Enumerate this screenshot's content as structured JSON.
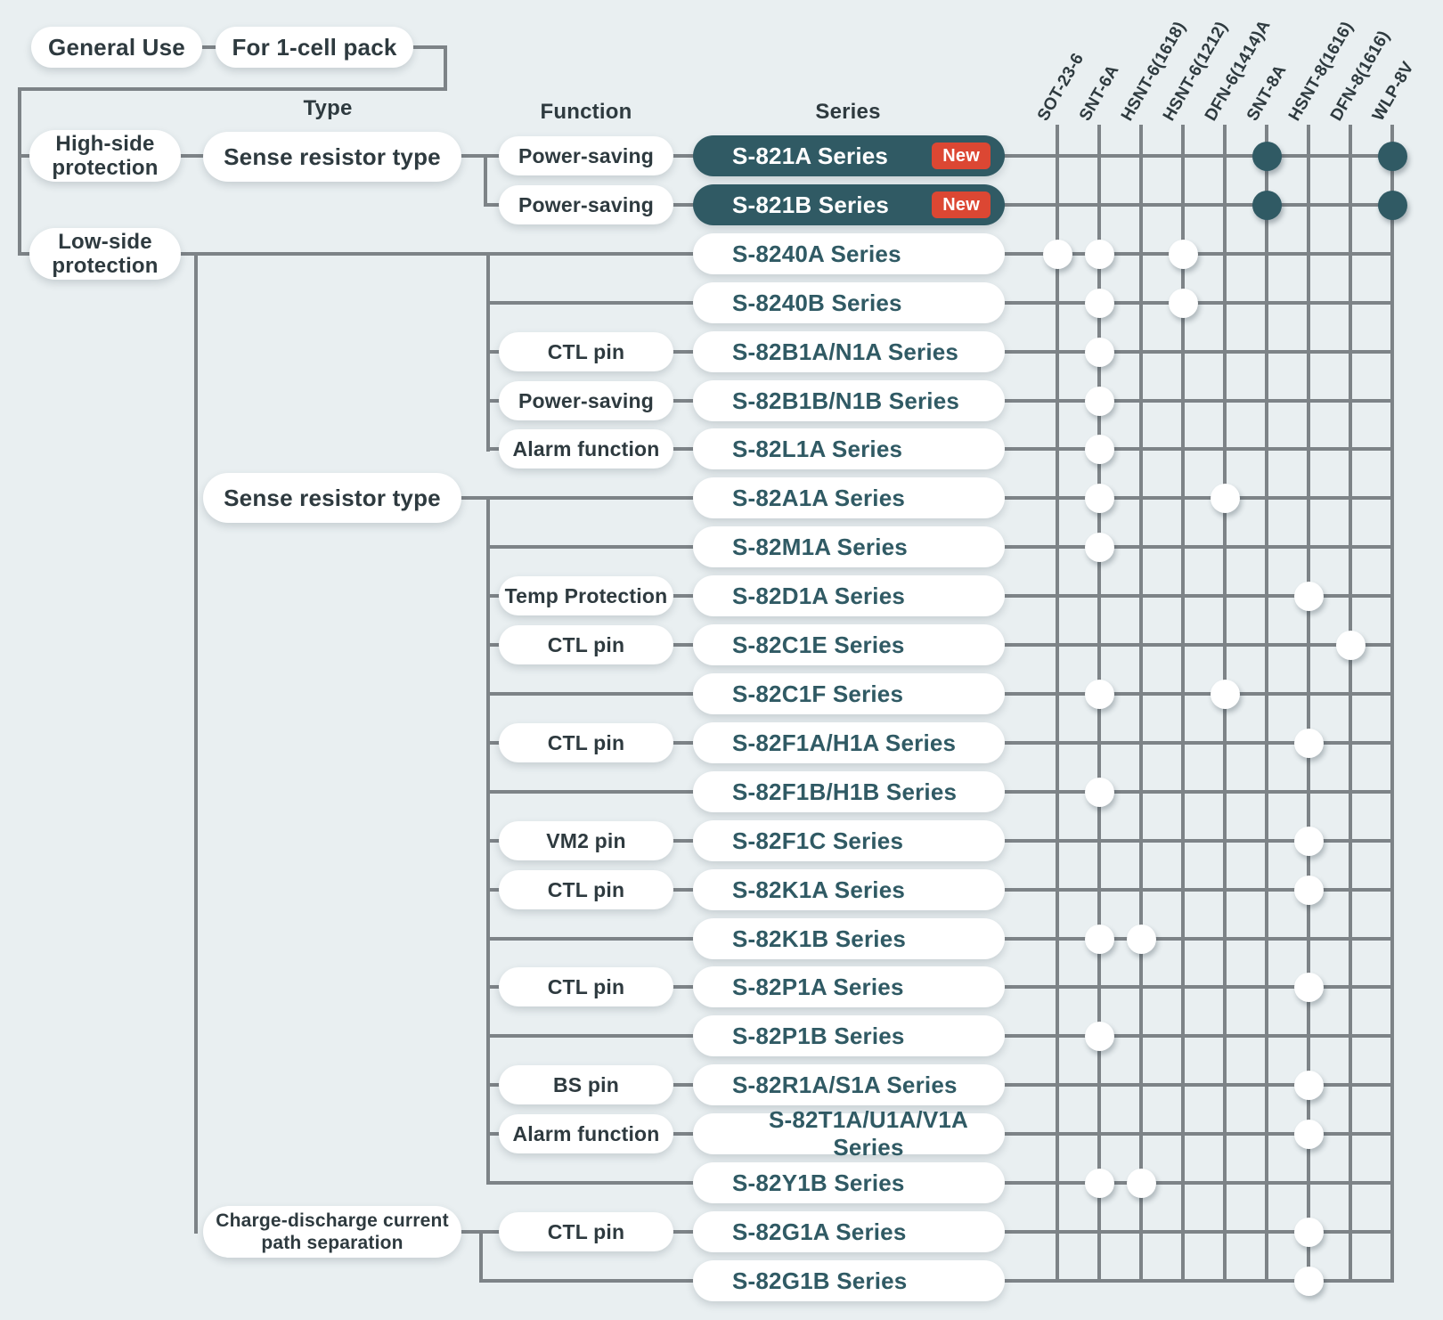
{
  "palette": {
    "background": "#e9eff1",
    "line_gray": "#7d8387",
    "teal": "#305a64",
    "charcoal": "#2e3a3f",
    "badge_red": "#dc4733",
    "dot_white": "#ffffff"
  },
  "top_nodes": {
    "general_use": "General Use",
    "for_1_cell": "For 1-cell pack"
  },
  "side_nodes": {
    "high_side": "High-side protection",
    "low_side": "Low-side protection"
  },
  "type_nodes": {
    "sense_high": "Sense resistor type",
    "sense_low": "Sense resistor type",
    "charge_discharge": "Charge-discharge current path separation"
  },
  "headers": {
    "type": "Type",
    "function": "Function",
    "series": "Series"
  },
  "packages": [
    "SOT-23-6",
    "SNT-6A",
    "HSNT-6(1618)",
    "HSNT-6(1212)",
    "DFN-6(1414)A",
    "SNT-8A",
    "HSNT-8(1616)",
    "DFN-8(1616)",
    "WLP-8V"
  ],
  "rows": [
    {
      "series": "S-821A Series",
      "function": "Power-saving",
      "badge": "New",
      "dark": true,
      "dots": [
        6,
        9
      ]
    },
    {
      "series": "S-821B Series",
      "function": "Power-saving",
      "badge": "New",
      "dark": true,
      "dots": [
        6,
        9
      ]
    },
    {
      "series": "S-8240A Series",
      "function": null,
      "badge": null,
      "dark": false,
      "dots": [
        1,
        2,
        4
      ]
    },
    {
      "series": "S-8240B Series",
      "function": null,
      "badge": null,
      "dark": false,
      "dots": [
        2,
        4
      ]
    },
    {
      "series": "S-82B1A/N1A Series",
      "function": "CTL pin",
      "badge": null,
      "dark": false,
      "dots": [
        2
      ]
    },
    {
      "series": "S-82B1B/N1B Series",
      "function": "Power-saving",
      "badge": null,
      "dark": false,
      "dots": [
        2
      ]
    },
    {
      "series": "S-82L1A Series",
      "function": "Alarm function",
      "badge": null,
      "dark": false,
      "dots": [
        2
      ]
    },
    {
      "series": "S-82A1A Series",
      "function": null,
      "badge": null,
      "dark": false,
      "dots": [
        2,
        5
      ]
    },
    {
      "series": "S-82M1A Series",
      "function": null,
      "badge": null,
      "dark": false,
      "dots": [
        2
      ]
    },
    {
      "series": "S-82D1A Series",
      "function": "Temp Protection",
      "badge": null,
      "dark": false,
      "dots": [
        7
      ]
    },
    {
      "series": "S-82C1E Series",
      "function": "CTL pin",
      "badge": null,
      "dark": false,
      "dots": [
        8
      ]
    },
    {
      "series": "S-82C1F Series",
      "function": null,
      "badge": null,
      "dark": false,
      "dots": [
        2,
        5
      ]
    },
    {
      "series": "S-82F1A/H1A Series",
      "function": "CTL pin",
      "badge": null,
      "dark": false,
      "dots": [
        7
      ]
    },
    {
      "series": "S-82F1B/H1B Series",
      "function": null,
      "badge": null,
      "dark": false,
      "dots": [
        2
      ]
    },
    {
      "series": "S-82F1C Series",
      "function": "VM2 pin",
      "badge": null,
      "dark": false,
      "dots": [
        7
      ]
    },
    {
      "series": "S-82K1A Series",
      "function": "CTL pin",
      "badge": null,
      "dark": false,
      "dots": [
        7
      ]
    },
    {
      "series": "S-82K1B Series",
      "function": null,
      "badge": null,
      "dark": false,
      "dots": [
        2,
        3
      ]
    },
    {
      "series": "S-82P1A Series",
      "function": "CTL pin",
      "badge": null,
      "dark": false,
      "dots": [
        7
      ]
    },
    {
      "series": "S-82P1B Series",
      "function": null,
      "badge": null,
      "dark": false,
      "dots": [
        2
      ]
    },
    {
      "series": "S-82R1A/S1A Series",
      "function": "BS pin",
      "badge": null,
      "dark": false,
      "dots": [
        7
      ]
    },
    {
      "series": "S-82T1A/U1A/V1A Series",
      "function": "Alarm function",
      "badge": null,
      "dark": false,
      "dots": [
        7
      ]
    },
    {
      "series": "S-82Y1B Series",
      "function": null,
      "badge": null,
      "dark": false,
      "dots": [
        2,
        3
      ]
    },
    {
      "series": "S-82G1A Series",
      "function": "CTL pin",
      "badge": null,
      "dark": false,
      "dots": [
        7
      ]
    },
    {
      "series": "S-82G1B Series",
      "function": null,
      "badge": null,
      "dark": false,
      "dots": [
        7
      ]
    }
  ]
}
